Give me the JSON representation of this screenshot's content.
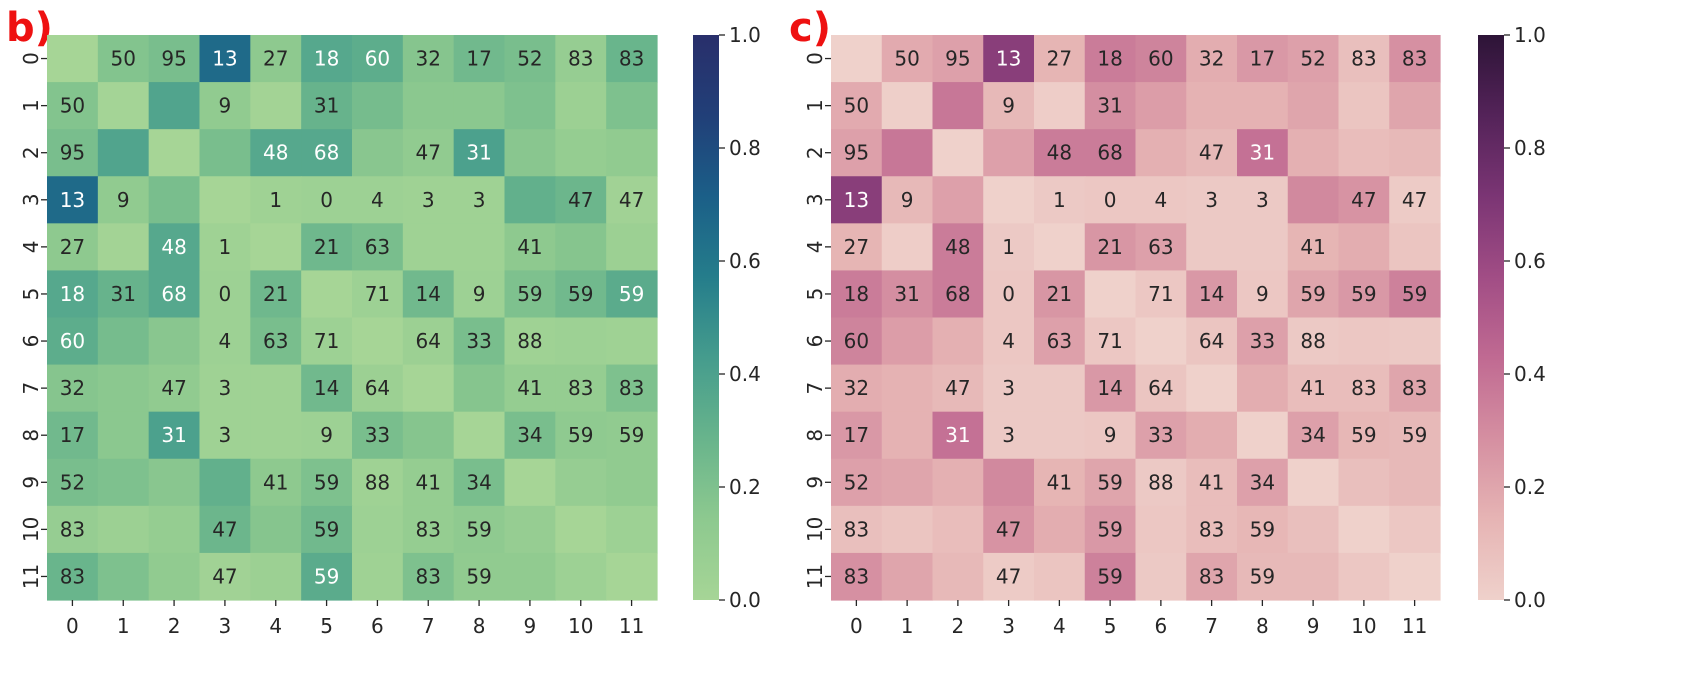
{
  "chart_data": [
    {
      "panel_label": "b)",
      "type": "heatmap",
      "x_tick_labels": [
        "0",
        "1",
        "2",
        "3",
        "4",
        "5",
        "6",
        "7",
        "8",
        "9",
        "10",
        "11"
      ],
      "y_tick_labels": [
        "0",
        "1",
        "2",
        "3",
        "4",
        "5",
        "6",
        "7",
        "8",
        "9",
        "10",
        "11"
      ],
      "colorbar": {
        "range": [
          0,
          1
        ],
        "ticks": [
          "0.0",
          "0.2",
          "0.4",
          "0.6",
          "0.8",
          "1.0"
        ],
        "colors": [
          "#a6d596",
          "#8dc98f",
          "#68b48c",
          "#459c8d",
          "#257d8b",
          "#1b5f88",
          "#213f78",
          "#292f6b"
        ]
      },
      "values": [
        [
          0.0,
          0.18,
          0.22,
          0.66,
          0.14,
          0.36,
          0.33,
          0.17,
          0.25,
          0.22,
          0.09,
          0.28
        ],
        [
          0.18,
          0.01,
          0.38,
          0.12,
          0.02,
          0.29,
          0.23,
          0.15,
          0.15,
          0.2,
          0.06,
          0.2
        ],
        [
          0.22,
          0.38,
          0.0,
          0.22,
          0.36,
          0.36,
          0.16,
          0.12,
          0.4,
          0.16,
          0.1,
          0.12
        ],
        [
          0.66,
          0.12,
          0.22,
          0.0,
          0.04,
          0.05,
          0.05,
          0.04,
          0.04,
          0.31,
          0.27,
          0.03
        ],
        [
          0.14,
          0.02,
          0.36,
          0.04,
          0.0,
          0.26,
          0.22,
          0.04,
          0.04,
          0.14,
          0.17,
          0.06
        ],
        [
          0.36,
          0.29,
          0.36,
          0.05,
          0.26,
          0.0,
          0.05,
          0.25,
          0.05,
          0.2,
          0.25,
          0.34
        ],
        [
          0.33,
          0.23,
          0.16,
          0.05,
          0.22,
          0.05,
          0.0,
          0.06,
          0.22,
          0.04,
          0.05,
          0.04
        ],
        [
          0.17,
          0.15,
          0.12,
          0.04,
          0.04,
          0.25,
          0.06,
          0.0,
          0.17,
          0.1,
          0.1,
          0.2
        ],
        [
          0.25,
          0.15,
          0.4,
          0.04,
          0.04,
          0.05,
          0.22,
          0.17,
          0.0,
          0.22,
          0.13,
          0.12
        ],
        [
          0.22,
          0.2,
          0.16,
          0.31,
          0.14,
          0.2,
          0.04,
          0.1,
          0.22,
          0.0,
          0.09,
          0.12
        ],
        [
          0.09,
          0.06,
          0.1,
          0.27,
          0.17,
          0.25,
          0.05,
          0.1,
          0.13,
          0.09,
          0.0,
          0.05
        ],
        [
          0.28,
          0.2,
          0.12,
          0.03,
          0.06,
          0.34,
          0.04,
          0.2,
          0.12,
          0.12,
          0.05,
          0.0
        ]
      ],
      "annotations": [
        [
          "",
          "50",
          "95",
          "13",
          "27",
          "18",
          "60",
          "32",
          "17",
          "52",
          "83",
          "83"
        ],
        [
          "50",
          "",
          "",
          "9",
          "",
          "31",
          "",
          "",
          "",
          "",
          "",
          ""
        ],
        [
          "95",
          "",
          "",
          "",
          "48",
          "68",
          "",
          "47",
          "31",
          "",
          "",
          ""
        ],
        [
          "13",
          "9",
          "",
          "",
          "1",
          "0",
          "4",
          "3",
          "3",
          "",
          "47",
          "47"
        ],
        [
          "27",
          "",
          "48",
          "1",
          "",
          "21",
          "63",
          "",
          "",
          "41",
          "",
          ""
        ],
        [
          "18",
          "31",
          "68",
          "0",
          "21",
          "",
          "71",
          "14",
          "9",
          "59",
          "59",
          "59"
        ],
        [
          "60",
          "",
          "",
          "4",
          "63",
          "71",
          "",
          "64",
          "33",
          "88",
          "",
          ""
        ],
        [
          "32",
          "",
          "47",
          "3",
          "",
          "14",
          "64",
          "",
          "",
          "41",
          "83",
          "83"
        ],
        [
          "17",
          "",
          "31",
          "3",
          "",
          "9",
          "33",
          "",
          "",
          "34",
          "59",
          "59"
        ],
        [
          "52",
          "",
          "",
          "",
          "41",
          "59",
          "88",
          "41",
          "34",
          "",
          "",
          ""
        ],
        [
          "83",
          "",
          "",
          "47",
          "",
          "59",
          "",
          "83",
          "59",
          "",
          "",
          ""
        ],
        [
          "83",
          "",
          "",
          "47",
          "",
          "59",
          "",
          "83",
          "59",
          "",
          "",
          ""
        ]
      ]
    },
    {
      "panel_label": "c)",
      "type": "heatmap",
      "x_tick_labels": [
        "0",
        "1",
        "2",
        "3",
        "4",
        "5",
        "6",
        "7",
        "8",
        "9",
        "10",
        "11"
      ],
      "y_tick_labels": [
        "0",
        "1",
        "2",
        "3",
        "4",
        "5",
        "6",
        "7",
        "8",
        "9",
        "10",
        "11"
      ],
      "colorbar": {
        "range": [
          0,
          1
        ],
        "ticks": [
          "0.0",
          "0.2",
          "0.4",
          "0.6",
          "0.8",
          "1.0"
        ],
        "colors": [
          "#efd1cb",
          "#e6b4b4",
          "#d58fa1",
          "#c06a92",
          "#a14d85",
          "#7b3574",
          "#542359",
          "#2d1437"
        ]
      },
      "values": [
        [
          0.0,
          0.18,
          0.22,
          0.66,
          0.14,
          0.36,
          0.33,
          0.17,
          0.25,
          0.22,
          0.09,
          0.28
        ],
        [
          0.18,
          0.01,
          0.38,
          0.12,
          0.02,
          0.29,
          0.23,
          0.15,
          0.15,
          0.2,
          0.06,
          0.2
        ],
        [
          0.22,
          0.38,
          0.0,
          0.22,
          0.36,
          0.36,
          0.16,
          0.12,
          0.4,
          0.16,
          0.1,
          0.12
        ],
        [
          0.66,
          0.12,
          0.22,
          0.0,
          0.04,
          0.05,
          0.05,
          0.04,
          0.04,
          0.31,
          0.27,
          0.03
        ],
        [
          0.14,
          0.02,
          0.36,
          0.04,
          0.0,
          0.26,
          0.22,
          0.04,
          0.04,
          0.14,
          0.17,
          0.06
        ],
        [
          0.36,
          0.29,
          0.36,
          0.05,
          0.26,
          0.0,
          0.05,
          0.25,
          0.05,
          0.2,
          0.25,
          0.34
        ],
        [
          0.33,
          0.23,
          0.16,
          0.05,
          0.22,
          0.05,
          0.0,
          0.06,
          0.22,
          0.04,
          0.05,
          0.04
        ],
        [
          0.17,
          0.15,
          0.12,
          0.04,
          0.04,
          0.25,
          0.06,
          0.0,
          0.17,
          0.1,
          0.1,
          0.2
        ],
        [
          0.25,
          0.15,
          0.4,
          0.04,
          0.04,
          0.05,
          0.22,
          0.17,
          0.0,
          0.22,
          0.13,
          0.12
        ],
        [
          0.22,
          0.2,
          0.16,
          0.31,
          0.14,
          0.2,
          0.04,
          0.1,
          0.22,
          0.0,
          0.09,
          0.12
        ],
        [
          0.09,
          0.06,
          0.1,
          0.27,
          0.17,
          0.25,
          0.05,
          0.1,
          0.13,
          0.09,
          0.0,
          0.05
        ],
        [
          0.28,
          0.2,
          0.12,
          0.03,
          0.06,
          0.34,
          0.04,
          0.2,
          0.12,
          0.12,
          0.05,
          0.0
        ]
      ],
      "annotations": [
        [
          "",
          "50",
          "95",
          "13",
          "27",
          "18",
          "60",
          "32",
          "17",
          "52",
          "83",
          "83"
        ],
        [
          "50",
          "",
          "",
          "9",
          "",
          "31",
          "",
          "",
          "",
          "",
          "",
          ""
        ],
        [
          "95",
          "",
          "",
          "",
          "48",
          "68",
          "",
          "47",
          "31",
          "",
          "",
          ""
        ],
        [
          "13",
          "9",
          "",
          "",
          "1",
          "0",
          "4",
          "3",
          "3",
          "",
          "47",
          "47"
        ],
        [
          "27",
          "",
          "48",
          "1",
          "",
          "21",
          "63",
          "",
          "",
          "41",
          "",
          ""
        ],
        [
          "18",
          "31",
          "68",
          "0",
          "21",
          "",
          "71",
          "14",
          "9",
          "59",
          "59",
          "59"
        ],
        [
          "60",
          "",
          "",
          "4",
          "63",
          "71",
          "",
          "64",
          "33",
          "88",
          "",
          ""
        ],
        [
          "32",
          "",
          "47",
          "3",
          "",
          "14",
          "64",
          "",
          "",
          "41",
          "83",
          "83"
        ],
        [
          "17",
          "",
          "31",
          "3",
          "",
          "9",
          "33",
          "",
          "",
          "34",
          "59",
          "59"
        ],
        [
          "52",
          "",
          "",
          "",
          "41",
          "59",
          "88",
          "41",
          "34",
          "",
          "",
          ""
        ],
        [
          "83",
          "",
          "",
          "47",
          "",
          "59",
          "",
          "83",
          "59",
          "",
          "",
          ""
        ],
        [
          "83",
          "",
          "",
          "47",
          "",
          "59",
          "",
          "83",
          "59",
          "",
          "",
          ""
        ]
      ]
    }
  ]
}
